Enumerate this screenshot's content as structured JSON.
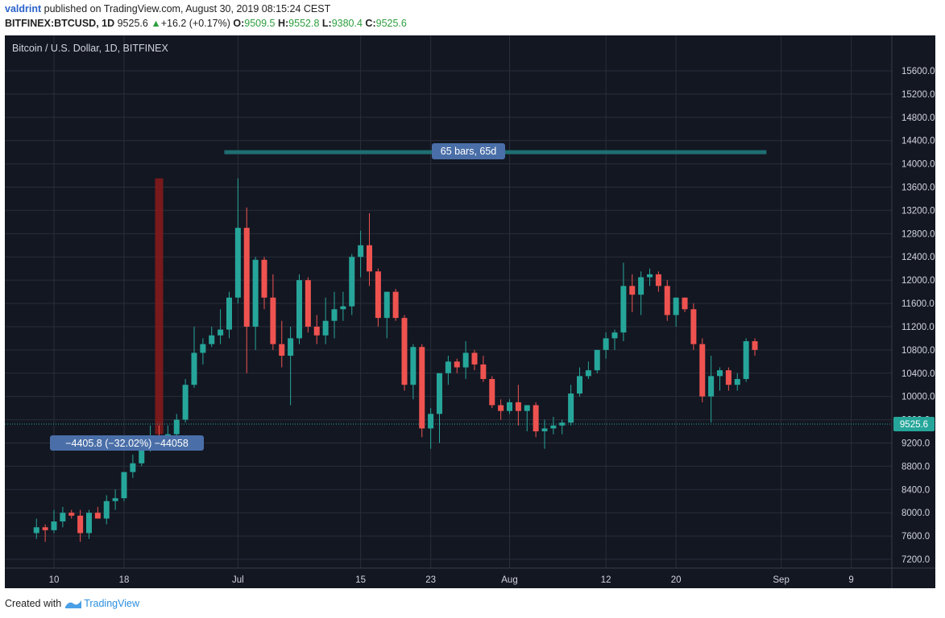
{
  "header": {
    "user": "valdrint",
    "published_text": "published on TradingView.com, August 30, 2019 08:15:24 CEST",
    "symbol": "BITFINEX:BTCUSD, 1D",
    "last": "9525.6",
    "change_arrow": "▲",
    "change": "+16.2 (+0.17%)",
    "o_label": "O:",
    "o_value": "9509.5",
    "h_label": "H:",
    "h_value": "9552.8",
    "l_label": "L:",
    "l_value": "9380.4",
    "c_label": "C:",
    "c_value": "9525.6"
  },
  "footer": {
    "created_with": "Created with",
    "brand": "TradingView",
    "brand_icon": "tradingview-logo-icon"
  },
  "colors": {
    "background": "#131722",
    "up": "#26a69a",
    "down": "#ef5350",
    "grid": "#2a2e39",
    "axis_text": "#d1d4dc",
    "price_line": "#26a69a",
    "range_bar": "#8b1a1a",
    "label_bg": "#4a6fa8"
  },
  "chart_data": {
    "type": "candlestick",
    "title": "Bitcoin / U.S. Dollar, 1D, BITFINEX",
    "date_range": "2019-06-08 to 2019-08-30",
    "x_ticks": [
      "10",
      "18",
      "Jul",
      "15",
      "23",
      "Aug",
      "12",
      "20",
      "Sep",
      "9"
    ],
    "y_ticks": [
      7200,
      7600,
      8000,
      8400,
      8800,
      9200,
      9600,
      10000,
      10400,
      10800,
      11200,
      11600,
      12000,
      12400,
      12800,
      13200,
      13600,
      14000,
      14400,
      14800,
      15200,
      15600
    ],
    "y_tick_labels": [
      "7200.0",
      "7600.0",
      "8000.0",
      "8400.0",
      "8800.0",
      "9200.0",
      "9600.0",
      "10000.0",
      "10400.0",
      "10800.0",
      "11200.0",
      "11600.0",
      "12000.0",
      "12400.0",
      "12800.0",
      "13200.0",
      "13600.0",
      "14000.0",
      "14400.0",
      "14800.0",
      "15200.0",
      "15600.0"
    ],
    "ylim": [
      7100,
      15800
    ],
    "last_price": 9525.6,
    "last_price_label": "9525.6",
    "candles": [
      {
        "date": "2019-06-08",
        "o": 7650,
        "h": 7900,
        "l": 7550,
        "c": 7750
      },
      {
        "date": "2019-06-09",
        "o": 7750,
        "h": 7800,
        "l": 7500,
        "c": 7700
      },
      {
        "date": "2019-06-10",
        "o": 7700,
        "h": 8050,
        "l": 7650,
        "c": 7850
      },
      {
        "date": "2019-06-11",
        "o": 7850,
        "h": 8100,
        "l": 7750,
        "c": 8000
      },
      {
        "date": "2019-06-12",
        "o": 8000,
        "h": 8050,
        "l": 7900,
        "c": 7950
      },
      {
        "date": "2019-06-13",
        "o": 7950,
        "h": 8050,
        "l": 7500,
        "c": 7650
      },
      {
        "date": "2019-06-14",
        "o": 7650,
        "h": 8050,
        "l": 7550,
        "c": 8000
      },
      {
        "date": "2019-06-15",
        "o": 8000,
        "h": 8100,
        "l": 7900,
        "c": 7900
      },
      {
        "date": "2019-06-16",
        "o": 7900,
        "h": 8300,
        "l": 7800,
        "c": 8200
      },
      {
        "date": "2019-06-17",
        "o": 8200,
        "h": 8400,
        "l": 8050,
        "c": 8250
      },
      {
        "date": "2019-06-18",
        "o": 8250,
        "h": 8700,
        "l": 8200,
        "c": 8700
      },
      {
        "date": "2019-06-19",
        "o": 8700,
        "h": 9000,
        "l": 8600,
        "c": 8850
      },
      {
        "date": "2019-06-20",
        "o": 8850,
        "h": 9300,
        "l": 8800,
        "c": 9150
      },
      {
        "date": "2019-06-21",
        "o": 9150,
        "h": 9500,
        "l": 9050,
        "c": 9300
      },
      {
        "date": "2019-06-22",
        "o": 9300,
        "h": 9500,
        "l": 9150,
        "c": 9200
      },
      {
        "date": "2019-06-23",
        "o": 9200,
        "h": 9500,
        "l": 9150,
        "c": 9350
      },
      {
        "date": "2019-06-24",
        "o": 9350,
        "h": 9700,
        "l": 9300,
        "c": 9600
      },
      {
        "date": "2019-06-25",
        "o": 9600,
        "h": 10300,
        "l": 9550,
        "c": 10200
      },
      {
        "date": "2019-06-26",
        "o": 10200,
        "h": 11200,
        "l": 10150,
        "c": 10750
      },
      {
        "date": "2019-06-27",
        "o": 10750,
        "h": 11000,
        "l": 10550,
        "c": 10900
      },
      {
        "date": "2019-06-28",
        "o": 10900,
        "h": 11200,
        "l": 10850,
        "c": 11050
      },
      {
        "date": "2019-06-29",
        "o": 11050,
        "h": 11500,
        "l": 10900,
        "c": 11150
      },
      {
        "date": "2019-06-30",
        "o": 11150,
        "h": 11800,
        "l": 11000,
        "c": 11700
      },
      {
        "date": "2019-07-01",
        "o": 11700,
        "h": 13750,
        "l": 11600,
        "c": 12900
      },
      {
        "date": "2019-07-02",
        "o": 12900,
        "h": 13250,
        "l": 10400,
        "c": 11200
      },
      {
        "date": "2019-07-03",
        "o": 11200,
        "h": 12400,
        "l": 10800,
        "c": 12350
      },
      {
        "date": "2019-07-04",
        "o": 12350,
        "h": 12400,
        "l": 11500,
        "c": 11700
      },
      {
        "date": "2019-07-05",
        "o": 11700,
        "h": 12100,
        "l": 10800,
        "c": 10900
      },
      {
        "date": "2019-07-06",
        "o": 10900,
        "h": 11300,
        "l": 10500,
        "c": 10700
      },
      {
        "date": "2019-07-07",
        "o": 10700,
        "h": 11200,
        "l": 9850,
        "c": 11000
      },
      {
        "date": "2019-07-08",
        "o": 11000,
        "h": 12100,
        "l": 10900,
        "c": 12000
      },
      {
        "date": "2019-07-09",
        "o": 12000,
        "h": 12050,
        "l": 11100,
        "c": 11200
      },
      {
        "date": "2019-07-10",
        "o": 11200,
        "h": 11400,
        "l": 10900,
        "c": 11050
      },
      {
        "date": "2019-07-11",
        "o": 11050,
        "h": 11700,
        "l": 10900,
        "c": 11300
      },
      {
        "date": "2019-07-12",
        "o": 11300,
        "h": 11800,
        "l": 11000,
        "c": 11500
      },
      {
        "date": "2019-07-13",
        "o": 11500,
        "h": 11800,
        "l": 11300,
        "c": 11550
      },
      {
        "date": "2019-07-14",
        "o": 11550,
        "h": 12450,
        "l": 11400,
        "c": 12400
      },
      {
        "date": "2019-07-15",
        "o": 12400,
        "h": 12850,
        "l": 12050,
        "c": 12600
      },
      {
        "date": "2019-07-16",
        "o": 12600,
        "h": 13150,
        "l": 11900,
        "c": 12150
      },
      {
        "date": "2019-07-17",
        "o": 12150,
        "h": 12200,
        "l": 11200,
        "c": 11350
      },
      {
        "date": "2019-07-18",
        "o": 11350,
        "h": 11800,
        "l": 11000,
        "c": 11800
      },
      {
        "date": "2019-07-19",
        "o": 11800,
        "h": 11850,
        "l": 11300,
        "c": 11350
      },
      {
        "date": "2019-07-20",
        "o": 11350,
        "h": 11400,
        "l": 10100,
        "c": 10200
      },
      {
        "date": "2019-07-21",
        "o": 10200,
        "h": 10900,
        "l": 9950,
        "c": 10850
      },
      {
        "date": "2019-07-22",
        "o": 10850,
        "h": 10900,
        "l": 9300,
        "c": 9450
      },
      {
        "date": "2019-07-23",
        "o": 9450,
        "h": 9800,
        "l": 9100,
        "c": 9700
      },
      {
        "date": "2019-07-24",
        "o": 9700,
        "h": 10400,
        "l": 9200,
        "c": 10400
      },
      {
        "date": "2019-07-25",
        "o": 10400,
        "h": 10700,
        "l": 10200,
        "c": 10600
      },
      {
        "date": "2019-07-26",
        "o": 10600,
        "h": 10650,
        "l": 10400,
        "c": 10500
      },
      {
        "date": "2019-07-27",
        "o": 10500,
        "h": 10950,
        "l": 10300,
        "c": 10750
      },
      {
        "date": "2019-07-28",
        "o": 10750,
        "h": 10800,
        "l": 10450,
        "c": 10550
      },
      {
        "date": "2019-07-29",
        "o": 10550,
        "h": 10700,
        "l": 10250,
        "c": 10300
      },
      {
        "date": "2019-07-30",
        "o": 10300,
        "h": 10350,
        "l": 9800,
        "c": 9850
      },
      {
        "date": "2019-07-31",
        "o": 9850,
        "h": 9950,
        "l": 9600,
        "c": 9750
      },
      {
        "date": "2019-08-01",
        "o": 9750,
        "h": 9950,
        "l": 9700,
        "c": 9900
      },
      {
        "date": "2019-08-02",
        "o": 9900,
        "h": 10200,
        "l": 9500,
        "c": 9750
      },
      {
        "date": "2019-08-03",
        "o": 9750,
        "h": 9800,
        "l": 9400,
        "c": 9850
      },
      {
        "date": "2019-08-04",
        "o": 9850,
        "h": 9900,
        "l": 9300,
        "c": 9400
      },
      {
        "date": "2019-08-05",
        "o": 9400,
        "h": 9600,
        "l": 9100,
        "c": 9450
      },
      {
        "date": "2019-08-06",
        "o": 9450,
        "h": 9650,
        "l": 9350,
        "c": 9500
      },
      {
        "date": "2019-08-07",
        "o": 9500,
        "h": 9600,
        "l": 9350,
        "c": 9550
      },
      {
        "date": "2019-08-08",
        "o": 9550,
        "h": 10200,
        "l": 9500,
        "c": 10050
      },
      {
        "date": "2019-08-09",
        "o": 10050,
        "h": 10500,
        "l": 10000,
        "c": 10350
      },
      {
        "date": "2019-08-10",
        "o": 10350,
        "h": 10600,
        "l": 10300,
        "c": 10450
      },
      {
        "date": "2019-08-11",
        "o": 10450,
        "h": 10800,
        "l": 10400,
        "c": 10800
      },
      {
        "date": "2019-08-12",
        "o": 10800,
        "h": 11100,
        "l": 10650,
        "c": 11000
      },
      {
        "date": "2019-08-13",
        "o": 11000,
        "h": 11150,
        "l": 10800,
        "c": 11100
      },
      {
        "date": "2019-08-14",
        "o": 11100,
        "h": 12300,
        "l": 10950,
        "c": 11900
      },
      {
        "date": "2019-08-15",
        "o": 11900,
        "h": 12100,
        "l": 11450,
        "c": 11750
      },
      {
        "date": "2019-08-16",
        "o": 11750,
        "h": 12150,
        "l": 11400,
        "c": 12050
      },
      {
        "date": "2019-08-17",
        "o": 12050,
        "h": 12200,
        "l": 11900,
        "c": 12100
      },
      {
        "date": "2019-08-18",
        "o": 12100,
        "h": 12150,
        "l": 11800,
        "c": 11900
      },
      {
        "date": "2019-08-19",
        "o": 11900,
        "h": 12000,
        "l": 11300,
        "c": 11400
      },
      {
        "date": "2019-08-20",
        "o": 11400,
        "h": 11700,
        "l": 11200,
        "c": 11700
      },
      {
        "date": "2019-08-21",
        "o": 11700,
        "h": 11700,
        "l": 11450,
        "c": 11500
      },
      {
        "date": "2019-08-22",
        "o": 11500,
        "h": 11600,
        "l": 10800,
        "c": 10900
      },
      {
        "date": "2019-08-23",
        "o": 10900,
        "h": 11000,
        "l": 9900,
        "c": 10000
      },
      {
        "date": "2019-08-24",
        "o": 10000,
        "h": 10700,
        "l": 9550,
        "c": 10350
      },
      {
        "date": "2019-08-25",
        "o": 10350,
        "h": 10500,
        "l": 10100,
        "c": 10450
      },
      {
        "date": "2019-08-26",
        "o": 10450,
        "h": 10500,
        "l": 10100,
        "c": 10200
      },
      {
        "date": "2019-08-27",
        "o": 10200,
        "h": 10400,
        "l": 10100,
        "c": 10300
      },
      {
        "date": "2019-08-28",
        "o": 10300,
        "h": 11000,
        "l": 10250,
        "c": 10950
      },
      {
        "date": "2019-08-29",
        "o": 10950,
        "h": 11000,
        "l": 10700,
        "c": 10800
      }
    ],
    "annotations": {
      "date_range_label": "65 bars, 65d",
      "price_range_label": "−4405.8 (−32.02%) −44058",
      "date_range": [
        "2019-06-22",
        "2019-08-26"
      ],
      "price_range": [
        9350,
        13750
      ]
    }
  }
}
